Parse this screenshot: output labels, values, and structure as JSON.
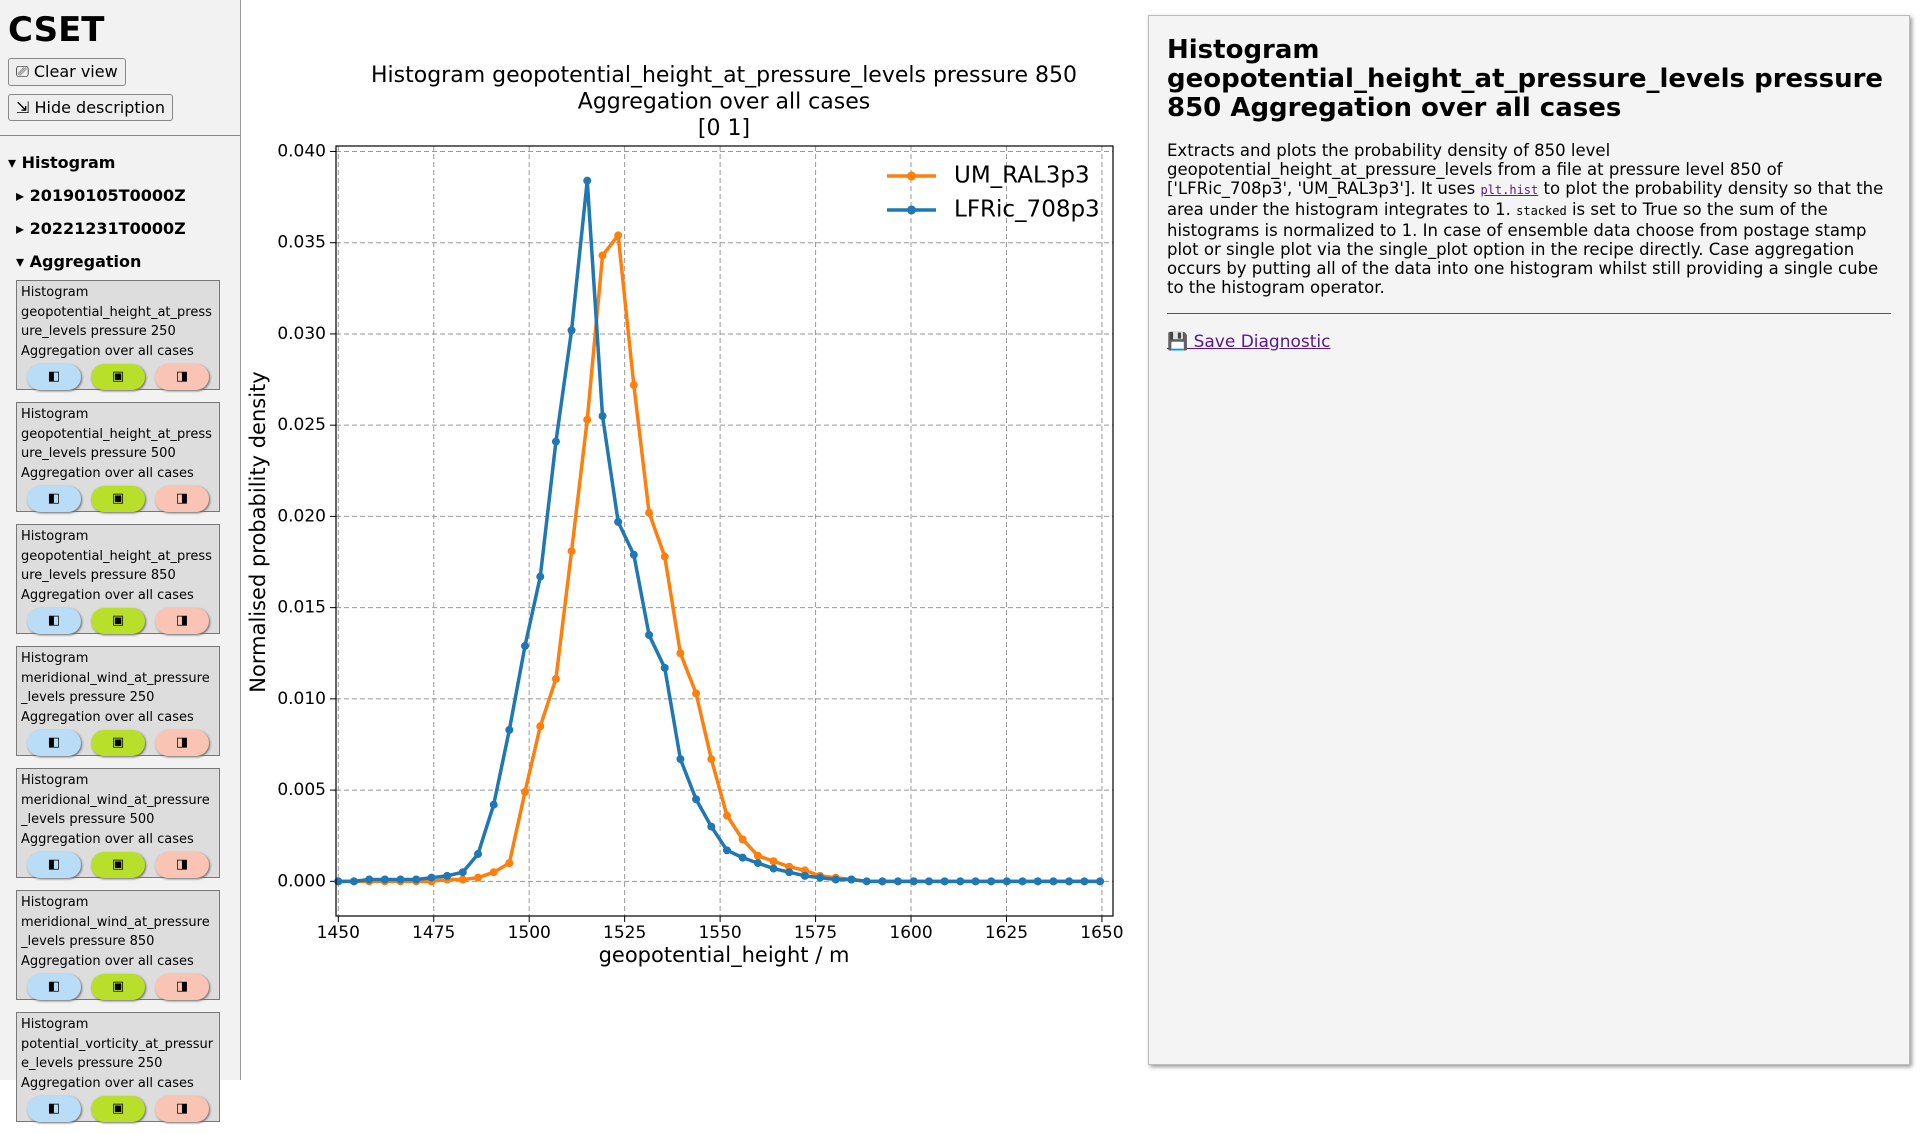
{
  "sidebar": {
    "title": "CSET",
    "buttons": [
      "⎚ Clear view",
      "⇲ Hide description"
    ],
    "tree": [
      {
        "label": "▾ Histogram",
        "level": 0
      },
      {
        "label": "▸ 20190105T0000Z",
        "level": 1
      },
      {
        "label": "▸ 20221231T0000Z",
        "level": 1
      },
      {
        "label": "▾ Aggregation",
        "level": 1
      }
    ],
    "card_buttons": [
      "◧",
      "▣",
      "◨"
    ],
    "cards": [
      "Histogram geopotential_height_at_pressure_levels pressure 250 Aggregation over all cases",
      "Histogram geopotential_height_at_pressure_levels pressure 500 Aggregation over all cases",
      "Histogram geopotential_height_at_pressure_levels pressure 850 Aggregation over all cases",
      "Histogram meridional_wind_at_pressure_levels pressure 250 Aggregation over all cases",
      "Histogram meridional_wind_at_pressure_levels pressure 500 Aggregation over all cases",
      "Histogram meridional_wind_at_pressure_levels pressure 850 Aggregation over all cases",
      "Histogram potential_vorticity_at_pressure_levels pressure 250 Aggregation over all cases"
    ]
  },
  "description": {
    "title": "Histogram geopotential_height_at_pressure_levels pressure 850 Aggregation over all cases",
    "text_1": "Extracts and plots the probability density of 850 level geopotential_height_at_pressure_levels from a file at pressure level 850 of ['LFRic_708p3', 'UM_RAL3p3']. It uses ",
    "code_1": "plt.hist",
    "text_2": " to plot the probability density so that the area under the histogram integrates to 1. ",
    "code_2": "stacked",
    "text_3": " is set to True so the sum of the histograms is normalized to 1. In case of ensemble data choose from postage stamp plot or single plot via the single_plot option in the recipe directly. Case aggregation occurs by putting all of the data into one histogram whilst still providing a single cube to the histogram operator.",
    "save": "💾 Save Diagnostic"
  },
  "chart_data": {
    "type": "line",
    "title": [
      "Histogram geopotential_height_at_pressure_levels pressure 850",
      "Aggregation over all cases",
      "[0 1]"
    ],
    "xlabel": "geopotential_height / m",
    "ylabel": "Normalised probability density",
    "x": [
      1450,
      1454.1,
      1458.1,
      1462.2,
      1466.3,
      1470.4,
      1474.4,
      1478.5,
      1482.6,
      1486.6,
      1490.7,
      1494.8,
      1498.9,
      1502.9,
      1507,
      1511.1,
      1515.2,
      1519.2,
      1523.3,
      1527.4,
      1531.4,
      1535.5,
      1539.6,
      1543.7,
      1547.7,
      1551.8,
      1555.9,
      1559.9,
      1564,
      1568.1,
      1572.2,
      1576.2,
      1580.3,
      1584.4,
      1588.4,
      1592.5,
      1596.6,
      1600.7,
      1604.7,
      1608.8,
      1612.9,
      1616.9,
      1621,
      1625.1,
      1629.2,
      1633.2,
      1637.3,
      1641.4,
      1645.4,
      1649.5
    ],
    "series": [
      {
        "name": "UM_RAL3p3",
        "color": "#ff7f0e",
        "values": [
          0,
          0,
          0,
          0,
          0,
          0,
          0,
          0.0001,
          0.0001,
          0.0002,
          0.0005,
          0.001,
          0.0049,
          0.0085,
          0.0111,
          0.0181,
          0.0253,
          0.0343,
          0.0354,
          0.0272,
          0.0202,
          0.0178,
          0.0125,
          0.0103,
          0.0067,
          0.0036,
          0.0023,
          0.0014,
          0.0011,
          0.0008,
          0.0006,
          0.0003,
          0.0002,
          0.0001,
          0,
          0,
          0,
          0,
          0,
          0,
          0,
          0,
          0,
          0,
          0,
          0,
          0,
          0,
          0,
          0
        ]
      },
      {
        "name": "LFRic_708p3",
        "color": "#1f77b4",
        "values": [
          0,
          0,
          0.0001,
          0.0001,
          0.0001,
          0.0001,
          0.0002,
          0.0003,
          0.0005,
          0.0015,
          0.0042,
          0.0083,
          0.0129,
          0.0167,
          0.0241,
          0.0302,
          0.0384,
          0.0255,
          0.0197,
          0.0179,
          0.0135,
          0.0117,
          0.0067,
          0.0045,
          0.003,
          0.0017,
          0.0013,
          0.001,
          0.0007,
          0.0005,
          0.0003,
          0.0002,
          0.0001,
          0.0001,
          0,
          0,
          0,
          0,
          0,
          0,
          0,
          0,
          0,
          0,
          0,
          0,
          0,
          0,
          0,
          0
        ]
      }
    ],
    "xlim": [
      1449.4,
      1652.9
    ],
    "ylim": [
      -0.0019,
      0.0403
    ],
    "xticks": [
      1450,
      1475,
      1500,
      1525,
      1550,
      1575,
      1600,
      1625,
      1650
    ],
    "yticks": [
      {
        "value": 0,
        "label": "0.000"
      },
      {
        "value": 0.005,
        "label": "0.005"
      },
      {
        "value": 0.01,
        "label": "0.010"
      },
      {
        "value": 0.015,
        "label": "0.015"
      },
      {
        "value": 0.02,
        "label": "0.020"
      },
      {
        "value": 0.025,
        "label": "0.025"
      },
      {
        "value": 0.03,
        "label": "0.030"
      },
      {
        "value": 0.035,
        "label": "0.035"
      },
      {
        "value": 0.04,
        "label": "0.040"
      }
    ],
    "grid": true,
    "legend": "upper right"
  }
}
